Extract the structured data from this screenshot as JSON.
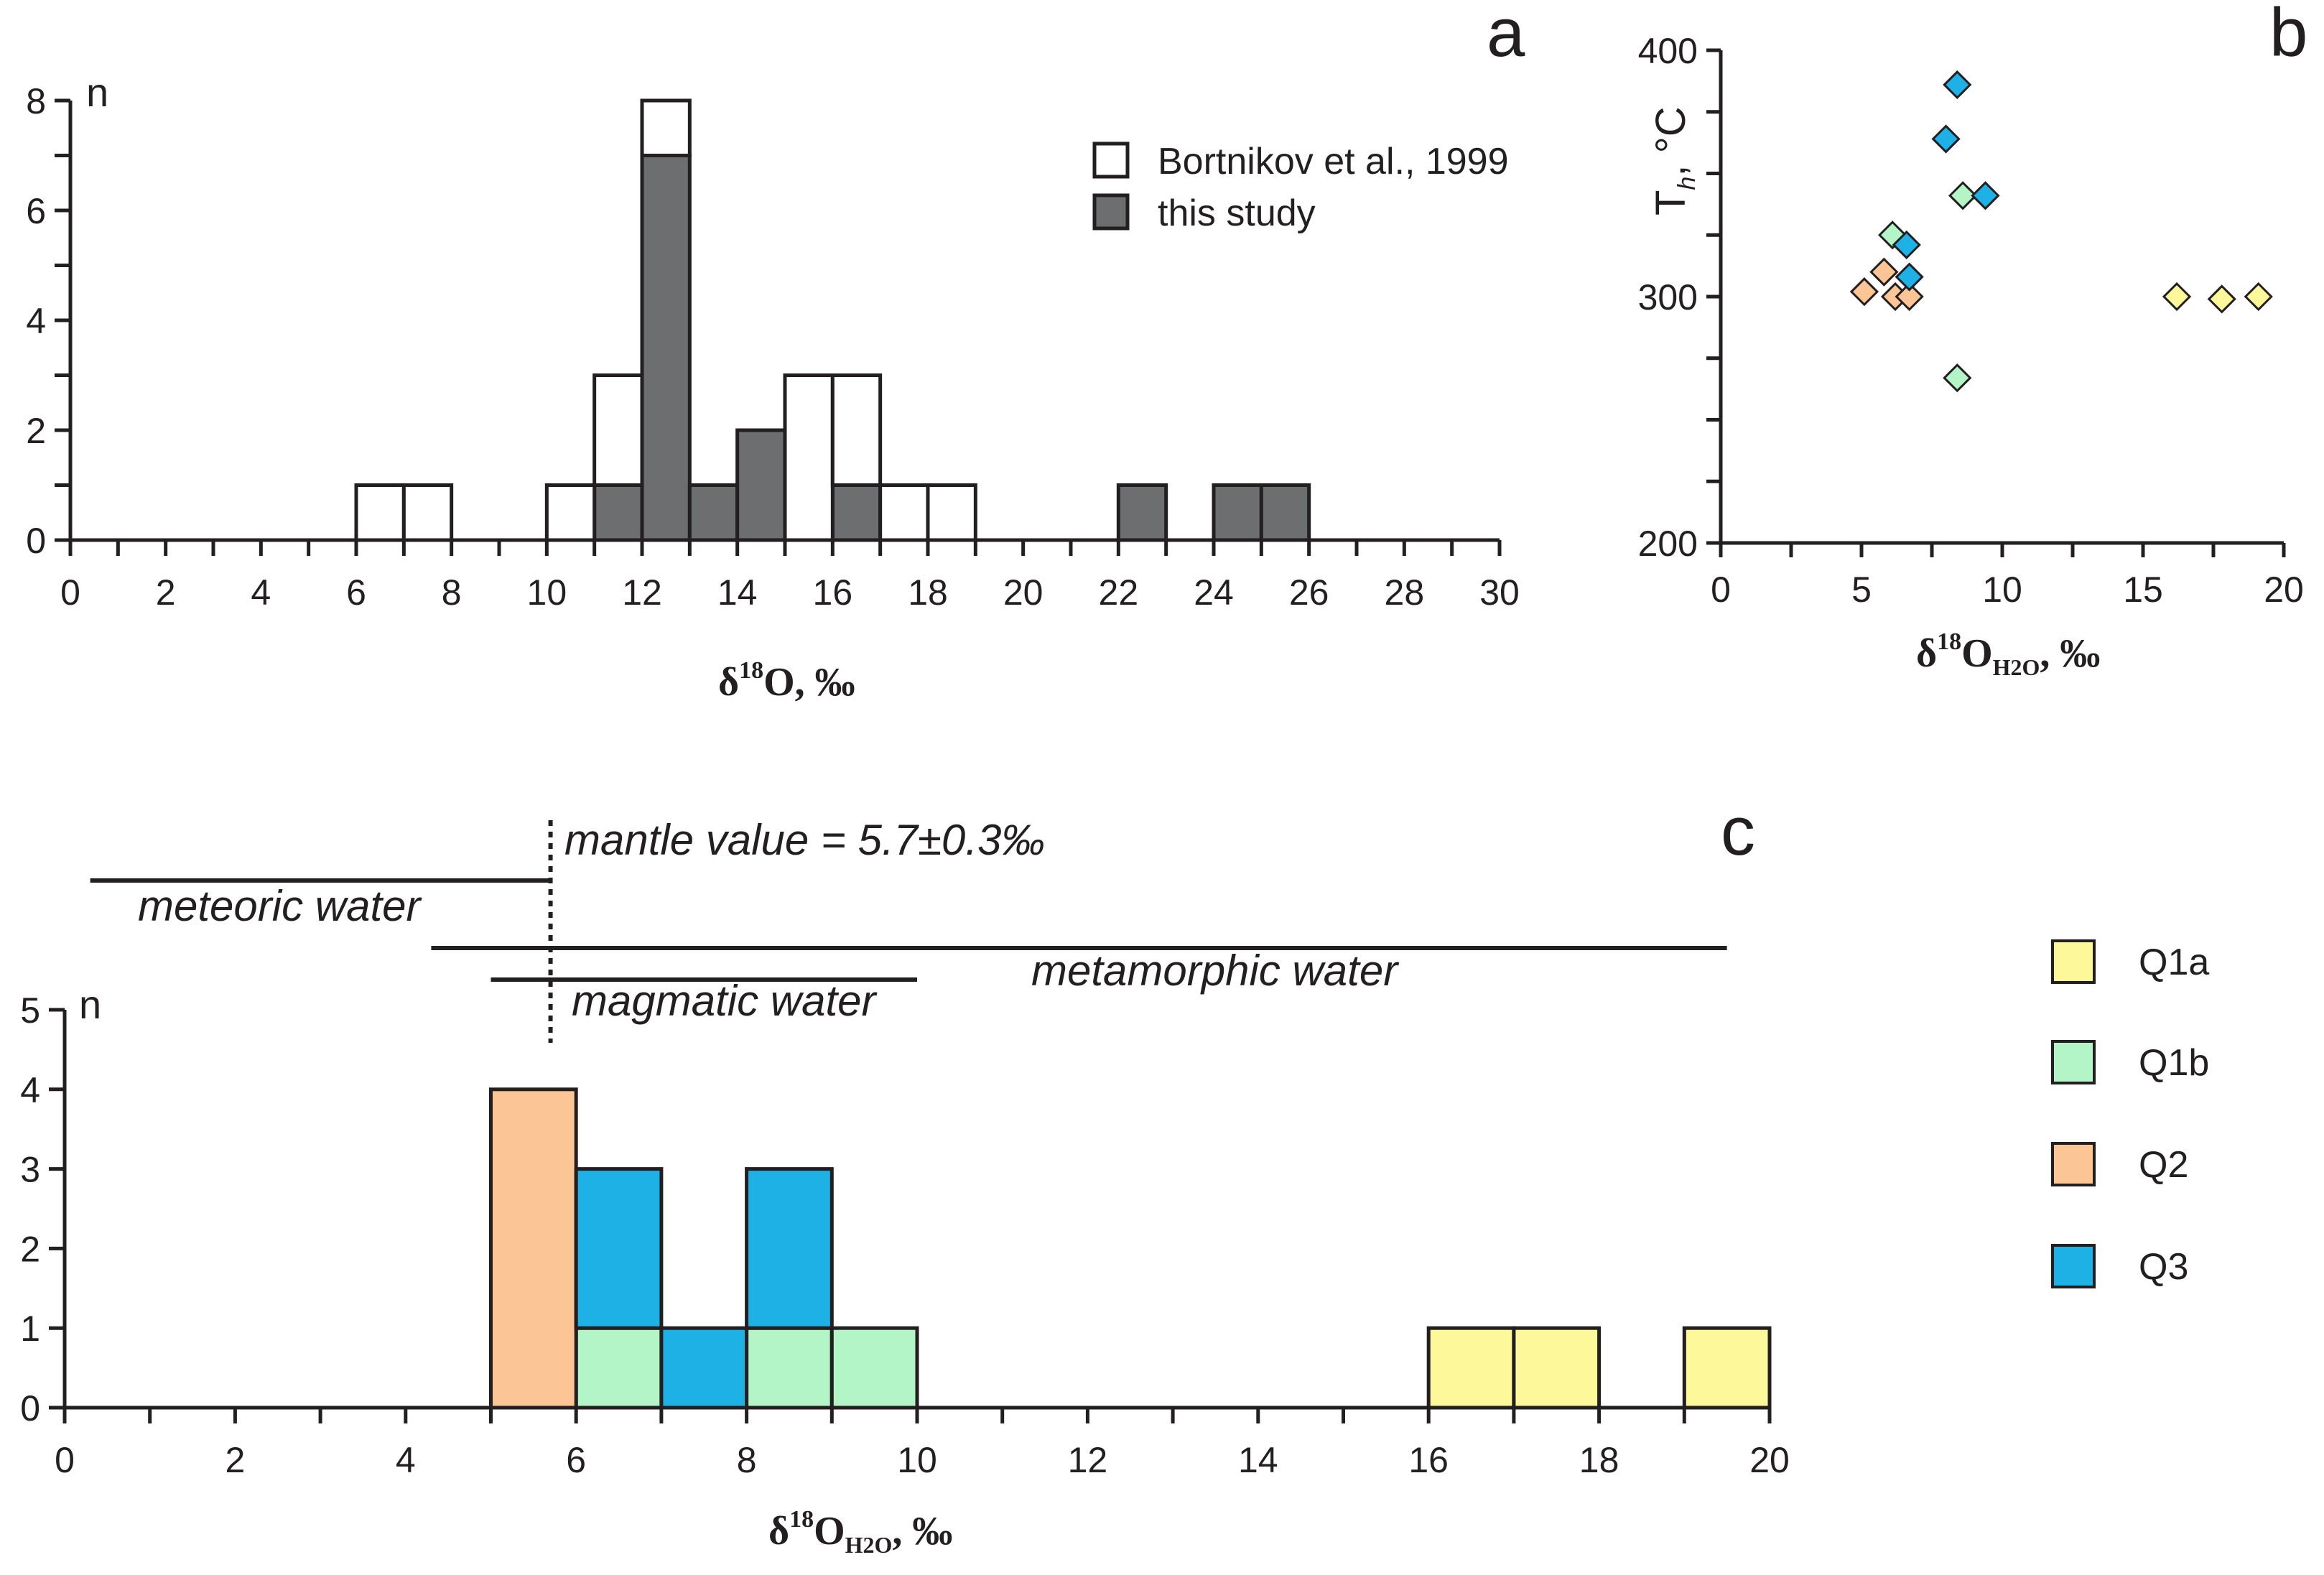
{
  "colors": {
    "axis": "#231f20",
    "open_bar": "#ffffff",
    "filled_bar": "#6d6e70",
    "Q1a": "#fdf99a",
    "Q1b": "#b4f5c8",
    "Q2": "#fbc596",
    "Q3": "#1eb1e6"
  },
  "panel_a": {
    "letter": "a",
    "n_label": "n",
    "x_title": {
      "prefix": "δ",
      "sup": "18",
      "main": "O, ‰"
    },
    "legend": [
      {
        "label": "Bortnikov et al., 1999",
        "color_key": "open_bar"
      },
      {
        "label": "this study",
        "color_key": "filled_bar"
      }
    ],
    "x_ticks": [
      "0",
      "2",
      "4",
      "6",
      "8",
      "10",
      "12",
      "14",
      "16",
      "18",
      "20",
      "22",
      "24",
      "26",
      "28",
      "30"
    ],
    "y_ticks": [
      "0",
      "2",
      "4",
      "6",
      "8"
    ]
  },
  "panel_b": {
    "letter": "b",
    "y_title_main": "T",
    "y_title_sub": "h",
    "y_title_tail": ", °C",
    "x_title": {
      "prefix": "δ",
      "sup": "18",
      "main": "O",
      "sub": "H2O",
      "tail": ", ‰"
    },
    "x_ticks": [
      "0",
      "5",
      "10",
      "15",
      "20"
    ],
    "y_ticks": [
      "200",
      "300",
      "400"
    ]
  },
  "panel_c": {
    "letter": "c",
    "n_label": "n",
    "x_title": {
      "prefix": "δ",
      "sup": "18",
      "main": "O",
      "sub": "H2O",
      "tail": ", ‰"
    },
    "x_ticks": [
      "0",
      "2",
      "4",
      "6",
      "8",
      "10",
      "12",
      "14",
      "16",
      "18",
      "20"
    ],
    "y_ticks": [
      "0",
      "1",
      "2",
      "3",
      "4",
      "5"
    ],
    "annotations": {
      "mantle": "mantle value = 5.7±0.3‰",
      "meteoric": "meteoric water",
      "magmatic": "magmatic water",
      "metamorphic": "metamorphic water"
    },
    "legend": [
      {
        "label": "Q1a",
        "color_key": "Q1a"
      },
      {
        "label": "Q1b",
        "color_key": "Q1b"
      },
      {
        "label": "Q2",
        "color_key": "Q2"
      },
      {
        "label": "Q3",
        "color_key": "Q3"
      }
    ]
  },
  "chart_data": [
    {
      "id": "a",
      "type": "bar",
      "stacked": true,
      "title": "",
      "xlabel": "δ18O, ‰",
      "ylabel": "n",
      "xlim": [
        0,
        30
      ],
      "ylim": [
        0,
        8
      ],
      "bin_width": 1,
      "series": [
        {
          "name": "this study",
          "color_key": "filled_bar",
          "bins": [
            [
              11,
              1
            ],
            [
              12,
              7
            ],
            [
              13,
              1
            ],
            [
              14,
              2
            ],
            [
              16,
              1
            ],
            [
              22,
              1
            ],
            [
              24,
              1
            ],
            [
              25,
              1
            ]
          ]
        },
        {
          "name": "Bortnikov et al., 1999",
          "color_key": "open_bar",
          "bins": [
            [
              6,
              1
            ],
            [
              7,
              1
            ],
            [
              10,
              1
            ],
            [
              11,
              2
            ],
            [
              12,
              1
            ],
            [
              15,
              3
            ],
            [
              16,
              2
            ],
            [
              17,
              1
            ],
            [
              18,
              1
            ]
          ]
        }
      ]
    },
    {
      "id": "b",
      "type": "scatter",
      "title": "",
      "xlabel": "δ18O H2O, ‰",
      "ylabel": "Th, °C",
      "xlim": [
        0,
        20
      ],
      "ylim": [
        200,
        400
      ],
      "series": [
        {
          "name": "Q1a",
          "color_key": "Q1a",
          "points": [
            [
              16.2,
              300
            ],
            [
              17.8,
              299
            ],
            [
              19.1,
              300
            ]
          ]
        },
        {
          "name": "Q1b",
          "color_key": "Q1b",
          "points": [
            [
              6.1,
              325
            ],
            [
              8.6,
              341
            ],
            [
              8.4,
              267
            ]
          ]
        },
        {
          "name": "Q2",
          "color_key": "Q2",
          "points": [
            [
              5.1,
              302
            ],
            [
              5.8,
              310
            ],
            [
              6.2,
              300
            ],
            [
              6.7,
              300
            ]
          ]
        },
        {
          "name": "Q3",
          "color_key": "Q3",
          "points": [
            [
              8.4,
              386
            ],
            [
              8.0,
              364
            ],
            [
              9.4,
              341
            ],
            [
              6.6,
              321
            ],
            [
              6.7,
              308
            ]
          ]
        }
      ]
    },
    {
      "id": "c",
      "type": "bar",
      "stacked": true,
      "title": "",
      "xlabel": "δ18O H2O, ‰",
      "ylabel": "n",
      "xlim": [
        0,
        20
      ],
      "ylim": [
        0,
        5
      ],
      "bin_width": 1,
      "series": [
        {
          "name": "Q1b",
          "color_key": "Q1b",
          "bins": [
            [
              6,
              1
            ],
            [
              8,
              1
            ],
            [
              9,
              1
            ]
          ]
        },
        {
          "name": "Q2",
          "color_key": "Q2",
          "bins": [
            [
              5,
              4
            ]
          ]
        },
        {
          "name": "Q3",
          "color_key": "Q3",
          "bins": [
            [
              6,
              2
            ],
            [
              7,
              1
            ],
            [
              8,
              2
            ]
          ]
        },
        {
          "name": "Q1a",
          "color_key": "Q1a",
          "bins": [
            [
              16,
              1
            ],
            [
              17,
              1
            ],
            [
              19,
              1
            ]
          ]
        }
      ],
      "ranges": [
        {
          "name": "meteoric water",
          "from": 0.3,
          "to": 5.7
        },
        {
          "name": "metamorphic water",
          "from": 4.3,
          "to": 19.5
        },
        {
          "name": "magmatic water",
          "from": 5.0,
          "to": 10.0
        },
        {
          "name": "mantle value",
          "at": 5.7
        }
      ]
    }
  ]
}
